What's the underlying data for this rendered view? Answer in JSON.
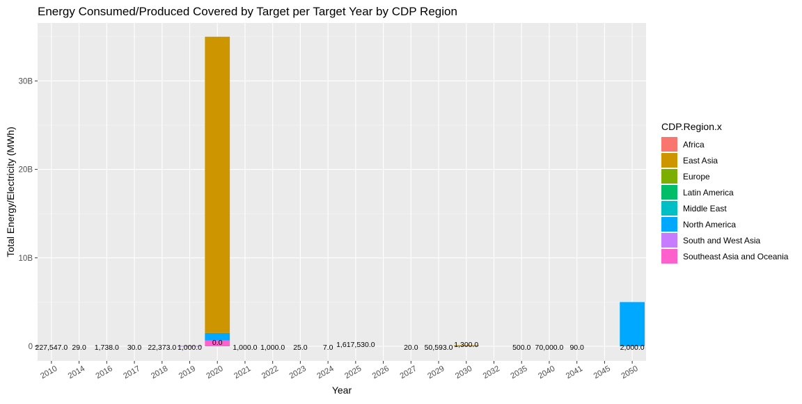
{
  "chart_data": {
    "type": "bar",
    "stacked": true,
    "title": "Energy Consumed/Produced Covered by Target per Target Year by CDP Region",
    "xlabel": "Year",
    "ylabel": "Total Energy/Electricity (MWh)",
    "ylim": [
      0,
      36000000000
    ],
    "yticks": [
      {
        "value": 0,
        "label": "0"
      },
      {
        "value": 10000000000,
        "label": "10B"
      },
      {
        "value": 20000000000,
        "label": "20B"
      },
      {
        "value": 30000000000,
        "label": "30B"
      }
    ],
    "categories": [
      "2010",
      "2014",
      "2016",
      "2017",
      "2018",
      "2019",
      "2020",
      "2021",
      "2022",
      "2023",
      "2024",
      "2025",
      "2026",
      "2027",
      "2029",
      "2030",
      "2032",
      "2035",
      "2040",
      "2041",
      "2045",
      "2050"
    ],
    "legend": {
      "title": "CDP.Region.x",
      "position": "right"
    },
    "grid": true,
    "series": [
      {
        "name": "Africa",
        "color": "#F8766D",
        "values": [
          0,
          0,
          0,
          0,
          0,
          0,
          0,
          0,
          0,
          0,
          0,
          0,
          0,
          0,
          0,
          0,
          0,
          0,
          0,
          0,
          0,
          0
        ]
      },
      {
        "name": "East Asia",
        "color": "#CD9600",
        "values": [
          0,
          0,
          0,
          0,
          0,
          0,
          33500000000,
          0,
          0,
          0,
          0,
          0,
          0,
          0,
          0,
          120000000,
          0,
          0,
          0,
          0,
          0,
          0
        ]
      },
      {
        "name": "Europe",
        "color": "#7CAE00",
        "values": [
          0,
          0,
          0,
          0,
          0,
          0,
          0,
          0,
          0,
          0,
          0,
          0,
          0,
          0,
          0,
          0,
          0,
          0,
          0,
          0,
          0,
          0
        ]
      },
      {
        "name": "Latin America",
        "color": "#00BE67",
        "values": [
          0,
          0,
          0,
          0,
          0,
          0,
          0,
          0,
          0,
          0,
          0,
          0,
          0,
          0,
          0,
          0,
          0,
          0,
          0,
          0,
          0,
          0
        ]
      },
      {
        "name": "Middle East",
        "color": "#00BFC4",
        "values": [
          0,
          0,
          0,
          0,
          0,
          0,
          0,
          0,
          0,
          0,
          0,
          0,
          0,
          0,
          0,
          0,
          0,
          0,
          0,
          0,
          0,
          0
        ]
      },
      {
        "name": "North America",
        "color": "#00A9FF",
        "values": [
          0,
          0,
          0,
          0,
          0,
          0,
          850000000,
          0,
          0,
          0,
          0,
          0,
          0,
          0,
          0,
          0,
          0,
          0,
          0,
          0,
          0,
          5000000000
        ]
      },
      {
        "name": "South and West Asia",
        "color": "#C77CFF",
        "values": [
          0,
          0,
          0,
          0,
          0,
          50000000,
          0,
          0,
          0,
          0,
          0,
          0,
          0,
          0,
          0,
          0,
          0,
          0,
          0,
          0,
          0,
          0
        ]
      },
      {
        "name": "Southeast Asia and Oceania",
        "color": "#FF61CC",
        "values": [
          0,
          0,
          0,
          0,
          0,
          0,
          650000000,
          0,
          0,
          0,
          0,
          0,
          0,
          0,
          0,
          0,
          0,
          0,
          0,
          0,
          0,
          0
        ]
      }
    ],
    "data_labels": [
      {
        "category": "2010",
        "text": "227,547.0"
      },
      {
        "category": "2014",
        "text": "29.0"
      },
      {
        "category": "2016",
        "text": "1,738.0"
      },
      {
        "category": "2017",
        "text": "30.0"
      },
      {
        "category": "2018",
        "text": "22,373.0"
      },
      {
        "category": "2019",
        "text": "1,000.0"
      },
      {
        "category": "2020",
        "text": "0.0"
      },
      {
        "category": "2021",
        "text": "1,000.0"
      },
      {
        "category": "2022",
        "text": "1,000.0"
      },
      {
        "category": "2023",
        "text": "25.0"
      },
      {
        "category": "2024",
        "text": "7.0"
      },
      {
        "category": "2025",
        "text": "1,617,530.0"
      },
      {
        "category": "2027",
        "text": "20.0"
      },
      {
        "category": "2029",
        "text": "50,593.0"
      },
      {
        "category": "2030",
        "text": "1,300.0"
      },
      {
        "category": "2035",
        "text": "500.0"
      },
      {
        "category": "2040",
        "text": "70,000.0"
      },
      {
        "category": "2041",
        "text": "90.0"
      },
      {
        "category": "2050",
        "text": "2,000.0"
      }
    ]
  }
}
